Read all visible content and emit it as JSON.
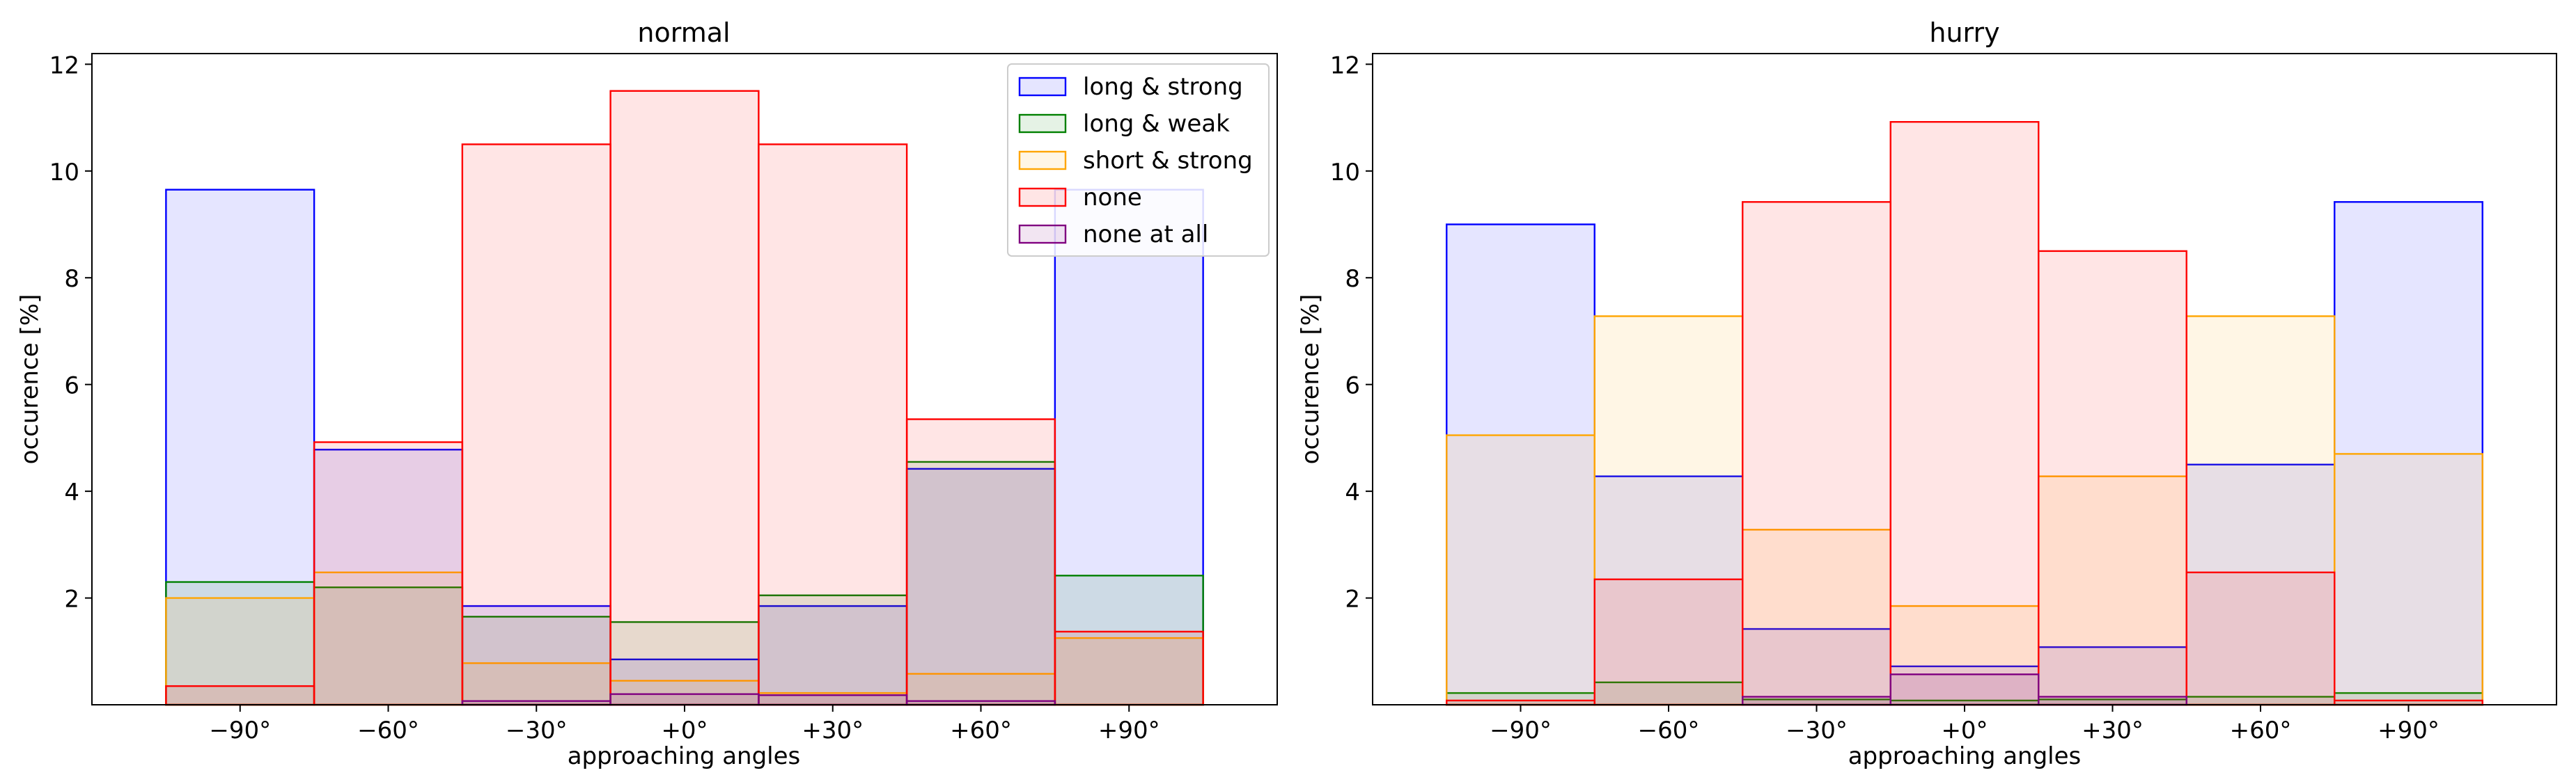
{
  "chart_data": [
    {
      "type": "histogram-step",
      "title": "normal",
      "xlabel": "approaching angles",
      "ylabel": "occurence [%]",
      "bin_edges": [
        -105,
        -75,
        -45,
        -15,
        15,
        45,
        75,
        105
      ],
      "xticks": [
        -90,
        -60,
        -30,
        0,
        30,
        60,
        90
      ],
      "xtick_labels": [
        "−90°",
        "−60°",
        "−30°",
        "+0°",
        "+30°",
        "+60°",
        "+90°"
      ],
      "xlim": [
        -120,
        120
      ],
      "ylim": [
        0,
        12.2
      ],
      "yticks": [
        2,
        4,
        6,
        8,
        10,
        12
      ],
      "ytick_labels": [
        "2",
        "4",
        "6",
        "8",
        "10",
        "12"
      ],
      "legend_position": "top-right",
      "series": [
        {
          "name": "long & strong",
          "values": [
            9.65,
            4.78,
            1.85,
            0.85,
            1.85,
            4.42,
            9.65
          ]
        },
        {
          "name": "long & weak",
          "values": [
            2.3,
            2.2,
            1.65,
            1.55,
            2.05,
            4.55,
            2.42
          ]
        },
        {
          "name": "short & strong",
          "values": [
            2.0,
            2.48,
            0.78,
            0.45,
            0.22,
            0.58,
            1.25
          ]
        },
        {
          "name": "none",
          "values": [
            0.35,
            4.92,
            10.5,
            11.5,
            10.5,
            5.35,
            1.37
          ]
        },
        {
          "name": "none at all",
          "values": [
            0.0,
            0.0,
            0.07,
            0.2,
            0.18,
            0.07,
            0.0
          ]
        }
      ]
    },
    {
      "type": "histogram-step",
      "title": "hurry",
      "xlabel": "approaching angles",
      "ylabel": "occurence [%]",
      "bin_edges": [
        -105,
        -75,
        -45,
        -15,
        15,
        45,
        75,
        105
      ],
      "xticks": [
        -90,
        -60,
        -30,
        0,
        30,
        60,
        90
      ],
      "xtick_labels": [
        "−90°",
        "−60°",
        "−30°",
        "+0°",
        "+30°",
        "+60°",
        "+90°"
      ],
      "xlim": [
        -120,
        120
      ],
      "ylim": [
        0,
        12.2
      ],
      "yticks": [
        2,
        4,
        6,
        8,
        10,
        12
      ],
      "ytick_labels": [
        "2",
        "4",
        "6",
        "8",
        "10",
        "12"
      ],
      "series": [
        {
          "name": "long & strong",
          "values": [
            9.0,
            4.28,
            1.42,
            0.72,
            1.08,
            4.5,
            9.42
          ]
        },
        {
          "name": "long & weak",
          "values": [
            0.22,
            0.42,
            0.1,
            0.08,
            0.1,
            0.15,
            0.22
          ]
        },
        {
          "name": "short & strong",
          "values": [
            5.05,
            7.28,
            3.28,
            1.85,
            4.28,
            7.28,
            4.7
          ]
        },
        {
          "name": "none",
          "values": [
            0.08,
            2.35,
            9.42,
            10.92,
            8.5,
            2.48,
            0.08
          ]
        },
        {
          "name": "none at all",
          "values": [
            0.0,
            0.0,
            0.15,
            0.57,
            0.15,
            0.0,
            0.0
          ]
        }
      ]
    }
  ],
  "colors": {
    "long & strong": "#0000ff",
    "long & weak": "#008000",
    "short & strong": "#ffa500",
    "none": "#ff0000",
    "none at all": "#800080"
  }
}
